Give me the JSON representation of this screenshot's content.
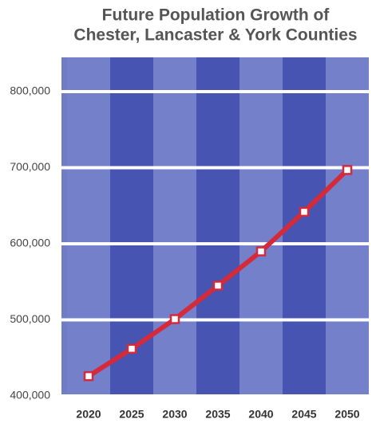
{
  "chart_data": {
    "type": "line",
    "title": [
      "Future Population Growth of",
      "Chester, Lancaster & York Counties"
    ],
    "categories": [
      "2020",
      "2025",
      "2030",
      "2035",
      "2040",
      "2045",
      "2050"
    ],
    "series": [
      {
        "color": "#d42a3a",
        "values": [
          426000,
          462000,
          501000,
          545000,
          590000,
          642000,
          697000
        ]
      }
    ],
    "ylim": [
      400000,
      845000
    ],
    "yticks": [
      {
        "value": 400000,
        "label": "400,000"
      },
      {
        "value": 500000,
        "label": "500,000"
      },
      {
        "value": 600000,
        "label": "600,000"
      },
      {
        "value": 700000,
        "label": "700,000"
      },
      {
        "value": 800000,
        "label": "800,000"
      }
    ],
    "grid": true
  }
}
